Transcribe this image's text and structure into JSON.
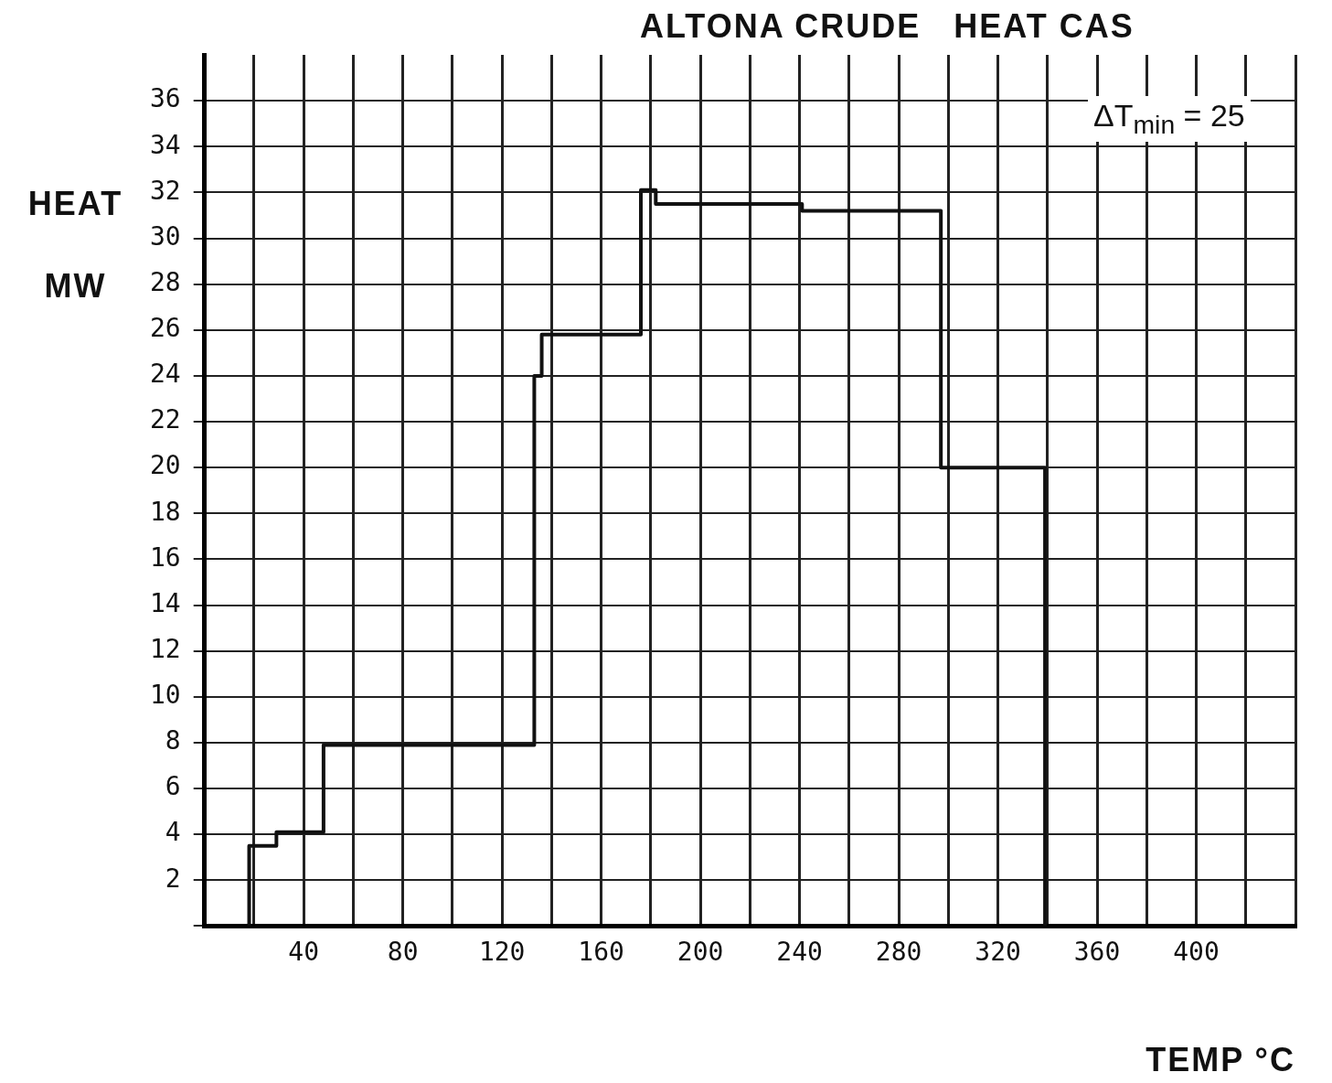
{
  "chart_data": {
    "type": "step",
    "title": "ALTONA CRUDE   HEAT CAS",
    "xlabel": "TEMP °C",
    "ylabel": "HEAT MW",
    "annotations": [
      "ΔT$_{min}$ = 25"
    ],
    "series": [
      {
        "color": "#111111",
        "x": [
          18,
          18,
          29,
          48,
          133,
          136,
          176,
          182,
          241,
          297,
          339
        ],
        "values": [
          0,
          3.5,
          4.1,
          7.9,
          24,
          25.8,
          32.1,
          31.5,
          31.2,
          20,
          0
        ]
      }
    ],
    "xlim": [
      0,
      440
    ],
    "xticks": [
      {
        "value": 20,
        "label": null
      },
      40,
      {
        "value": 60,
        "label": null
      },
      80,
      {
        "value": 100,
        "label": null
      },
      120,
      {
        "value": 140,
        "label": null
      },
      160,
      {
        "value": 180,
        "label": null
      },
      200,
      {
        "value": 220,
        "label": null
      },
      240,
      {
        "value": 260,
        "label": null
      },
      280,
      {
        "value": 300,
        "label": null
      },
      320,
      {
        "value": 340,
        "label": null
      },
      360,
      {
        "value": 380,
        "label": null
      },
      400,
      {
        "value": 420,
        "label": null
      },
      {
        "value": 440,
        "label": null
      }
    ],
    "ylim": [
      0,
      38
    ],
    "yticks": [
      {
        "value": 0,
        "label": null
      },
      2,
      4,
      6,
      8,
      10,
      12,
      14,
      16,
      18,
      20,
      22,
      24,
      26,
      28,
      30,
      32,
      34,
      36
    ],
    "grid": true,
    "marker": "none",
    "line_style": "solid"
  }
}
